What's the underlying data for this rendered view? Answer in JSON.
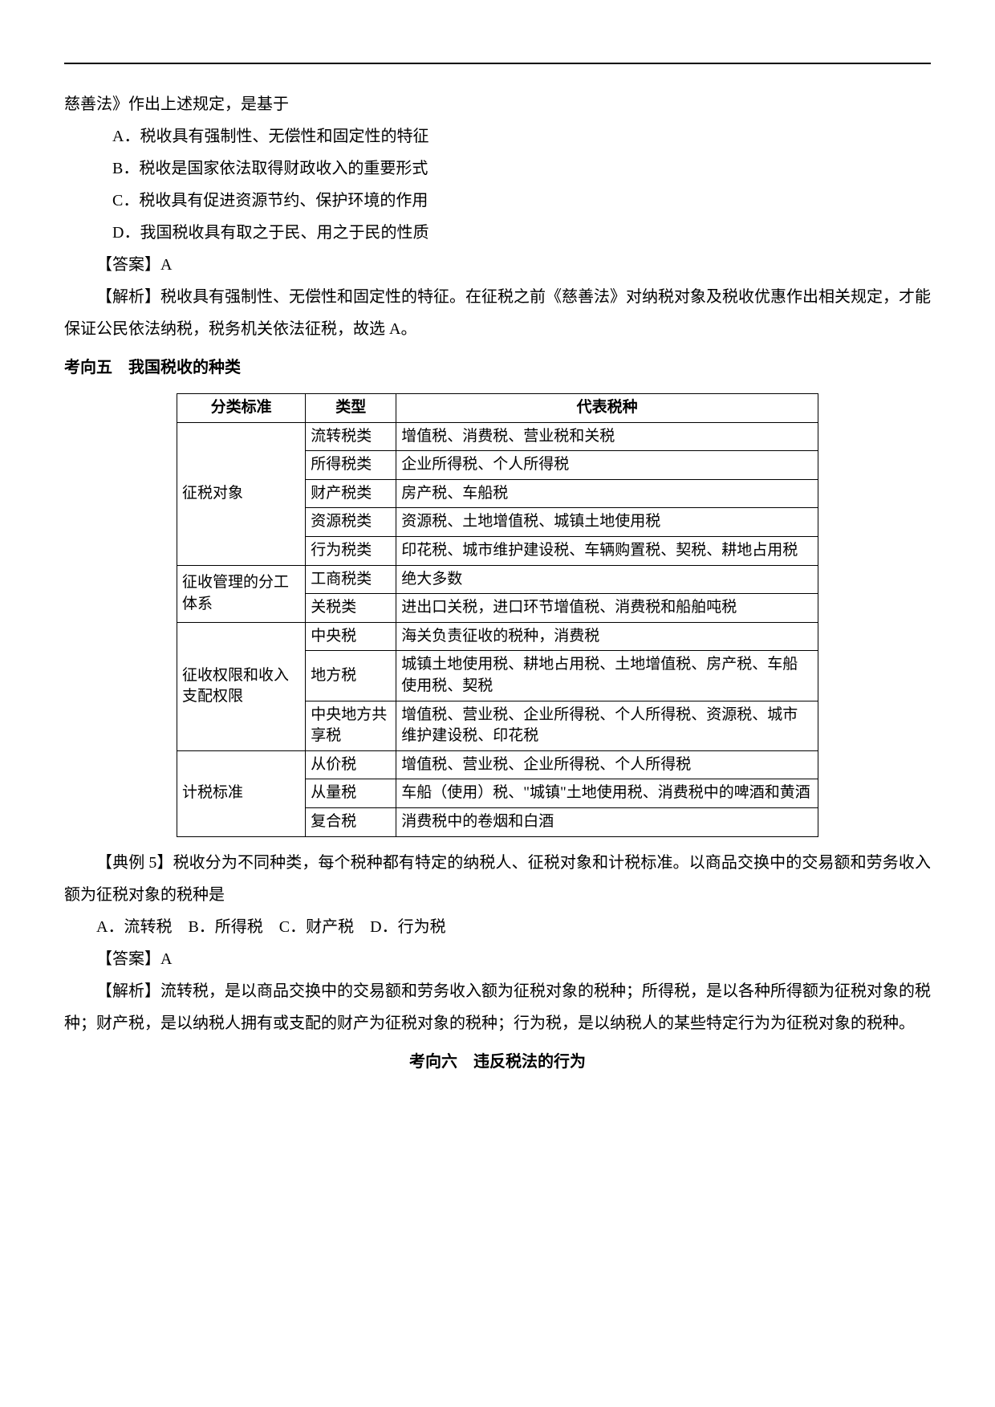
{
  "intro_continuation": "慈善法》作出上述规定，是基于",
  "options_q1": {
    "A": "A．税收具有强制性、无偿性和固定性的特征",
    "B": "B．税收是国家依法取得财政收入的重要形式",
    "C": "C．税收具有促进资源节约、保护环境的作用",
    "D": "D．我国税收具有取之于民、用之于民的性质"
  },
  "answer_q1": "【答案】A",
  "analysis_q1": "【解析】税收具有强制性、无偿性和固定性的特征。在征税之前《慈善法》对纳税对象及税收优惠作出相关规定，才能保证公民依法纳税，税务机关依法征税，故选 A。",
  "heading_5": "考向五　我国税收的种类",
  "table": {
    "headers": [
      "分类标准",
      "类型",
      "代表税种"
    ],
    "rows": [
      {
        "group": "征税对象",
        "rowspan": 5,
        "type": "流转税类",
        "repr": "增值税、消费税、营业税和关税"
      },
      {
        "type": "所得税类",
        "repr": "企业所得税、个人所得税"
      },
      {
        "type": "财产税类",
        "repr": "房产税、车船税"
      },
      {
        "type": "资源税类",
        "repr": "资源税、土地增值税、城镇土地使用税"
      },
      {
        "type": "行为税类",
        "repr": "印花税、城市维护建设税、车辆购置税、契税、耕地占用税"
      },
      {
        "group": "征收管理的分工体系",
        "rowspan": 2,
        "type": "工商税类",
        "repr": "绝大多数"
      },
      {
        "type": "关税类",
        "repr": "进出口关税，进口环节增值税、消费税和船舶吨税"
      },
      {
        "group": "征收权限和收入支配权限",
        "rowspan": 3,
        "type": "中央税",
        "repr": "海关负责征收的税种，消费税"
      },
      {
        "type": "地方税",
        "repr": "城镇土地使用税、耕地占用税、土地增值税、房产税、车船使用税、契税"
      },
      {
        "type": "中央地方共享税",
        "repr": "增值税、营业税、企业所得税、个人所得税、资源税、城市维护建设税、印花税"
      },
      {
        "group": "计税标准",
        "rowspan": 3,
        "type": "从价税",
        "repr": "增值税、营业税、企业所得税、个人所得税"
      },
      {
        "type": "从量税",
        "repr": "车船（使用）税、\"城镇\"土地使用税、消费税中的啤酒和黄酒"
      },
      {
        "type": "复合税",
        "repr": "消费税中的卷烟和白酒"
      }
    ]
  },
  "example_5": "【典例 5】税收分为不同种类，每个税种都有特定的纳税人、征税对象和计税标准。以商品交换中的交易额和劳务收入额为征税对象的税种是",
  "options_q2": "A．流转税　B．所得税　C．财产税　D．行为税",
  "answer_q2": "【答案】A",
  "analysis_q2": "【解析】流转税，是以商品交换中的交易额和劳务收入额为征税对象的税种；所得税，是以各种所得额为征税对象的税种；财产税，是以纳税人拥有或支配的财产为征税对象的税种；行为税，是以纳税人的某些特定行为为征税对象的税种。",
  "heading_6": "考向六　违反税法的行为"
}
